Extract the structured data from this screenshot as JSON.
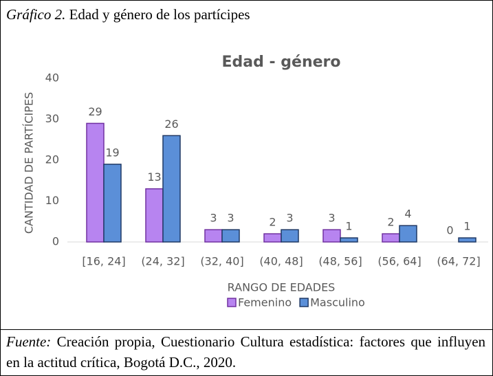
{
  "figure": {
    "caption_label": "Gráfico 2.",
    "caption": "Edad y género de los partícipes",
    "source_label": "Fuente:",
    "source": "Creación propia, Cuestionario Cultura estadística: factores que influyen en la actitud crítica, Bogotá D.C., 2020."
  },
  "chart_data": {
    "type": "bar",
    "title": "Edad - género",
    "x_label": "RANGO DE EDADES",
    "y_label": "CANTIDAD DE PARTÍCIPES",
    "categories": [
      "[16, 24]",
      "(24, 32]",
      "(32, 40]",
      "(40, 48]",
      "(48, 56]",
      "(56, 64]",
      "(64, 72]"
    ],
    "series": [
      {
        "name": "Femenino",
        "color": "#b784f0",
        "stroke": "#7030a0",
        "values": [
          29,
          13,
          3,
          2,
          3,
          2,
          0
        ]
      },
      {
        "name": "Masculino",
        "color": "#5b8fd8",
        "stroke": "#1f3864",
        "values": [
          19,
          26,
          3,
          3,
          1,
          4,
          1
        ]
      }
    ],
    "ylim": [
      0,
      40
    ],
    "yticks": [
      0,
      10,
      20,
      30,
      40
    ],
    "grid": false,
    "legend": "bottom"
  }
}
